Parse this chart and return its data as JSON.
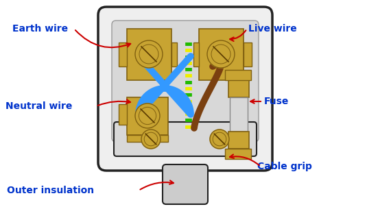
{
  "bg_color": "#ffffff",
  "plug_body_color": "#e0e0e0",
  "plug_outline_color": "#222222",
  "inner_color": "#d0d0d0",
  "gold_color": "#c8a432",
  "gold_edge": "#806010",
  "screw_face": "#c8a432",
  "screw_line": "#5a3a00",
  "label_color": "#0033cc",
  "arrow_color": "#cc0000",
  "label_fontsize": 10,
  "labels": {
    "earth_wire": "Earth wire",
    "live_wire": "Live wire",
    "neutral_wire": "Neutral wire",
    "fuse": "Fuse",
    "cable_grip": "Cable grip",
    "outer_insulation": "Outer insulation"
  }
}
